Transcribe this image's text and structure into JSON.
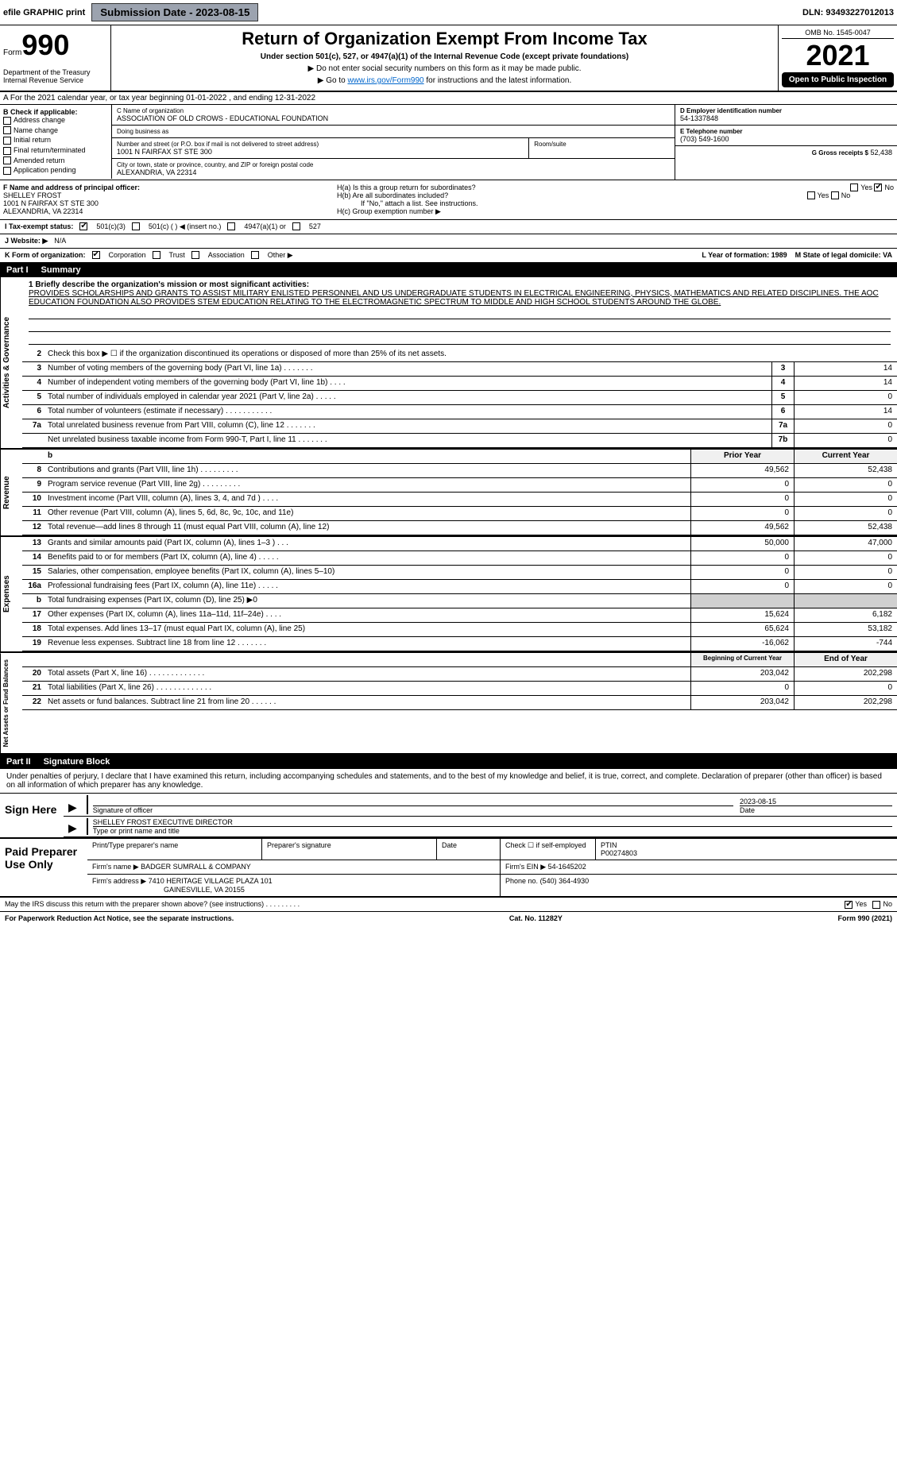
{
  "topbar": {
    "efile": "efile GRAPHIC print",
    "subdate_label": "Submission Date - 2023-08-15",
    "dln": "DLN: 93493227012013"
  },
  "header": {
    "form_word": "Form",
    "form_num": "990",
    "title": "Return of Organization Exempt From Income Tax",
    "sub1": "Under section 501(c), 527, or 4947(a)(1) of the Internal Revenue Code (except private foundations)",
    "sub2": "▶ Do not enter social security numbers on this form as it may be made public.",
    "sub3_pre": "▶ Go to ",
    "sub3_link": "www.irs.gov/Form990",
    "sub3_post": " for instructions and the latest information.",
    "dept": "Department of the Treasury\nInternal Revenue Service",
    "omb": "OMB No. 1545-0047",
    "year": "2021",
    "inspect": "Open to Public Inspection"
  },
  "rowA": "A For the 2021 calendar year, or tax year beginning 01-01-2022    , and ending 12-31-2022",
  "blockB": {
    "label": "B Check if applicable:",
    "items": [
      "Address change",
      "Name change",
      "Initial return",
      "Final return/terminated",
      "Amended return",
      "Application pending"
    ]
  },
  "blockC": {
    "name_lbl": "C Name of organization",
    "name": "ASSOCIATION OF OLD CROWS - EDUCATIONAL FOUNDATION",
    "dba_lbl": "Doing business as",
    "dba": "",
    "addr_lbl": "Number and street (or P.O. box if mail is not delivered to street address)",
    "room_lbl": "Room/suite",
    "addr": "1001 N FAIRFAX ST STE 300",
    "city_lbl": "City or town, state or province, country, and ZIP or foreign postal code",
    "city": "ALEXANDRIA, VA  22314"
  },
  "blockD": {
    "lbl": "D Employer identification number",
    "val": "54-1337848"
  },
  "blockE": {
    "lbl": "E Telephone number",
    "val": "(703) 549-1600"
  },
  "blockG": {
    "lbl": "G Gross receipts $",
    "val": "52,438"
  },
  "blockF": {
    "lbl": "F  Name and address of principal officer:",
    "name": "SHELLEY FROST",
    "addr1": "1001 N FAIRFAX ST STE 300",
    "addr2": "ALEXANDRIA, VA  22314"
  },
  "blockH": {
    "ha": "H(a)  Is this a group return for subordinates?",
    "hb": "H(b)  Are all subordinates included?",
    "hb_note": "If \"No,\" attach a list. See instructions.",
    "hc": "H(c)  Group exemption number ▶",
    "yes": "Yes",
    "no": "No"
  },
  "rowI": {
    "lbl": "I    Tax-exempt status:",
    "opts": [
      "501(c)(3)",
      "501(c) (  ) ◀ (insert no.)",
      "4947(a)(1) or",
      "527"
    ]
  },
  "rowJ": {
    "lbl": "J   Website: ▶",
    "val": "N/A"
  },
  "rowK": {
    "lbl": "K Form of organization:",
    "opts": [
      "Corporation",
      "Trust",
      "Association",
      "Other ▶"
    ]
  },
  "rowL": {
    "l": "L Year of formation: 1989",
    "m": "M State of legal domicile: VA"
  },
  "part1": {
    "num": "Part I",
    "title": "Summary"
  },
  "mission": {
    "q": "1  Briefly describe the organization's mission or most significant activities:",
    "text": "PROVIDES SCHOLARSHIPS AND GRANTS TO ASSIST MILITARY ENLISTED PERSONNEL AND US UNDERGRADUATE STUDENTS IN ELECTRICAL ENGINEERING, PHYSICS, MATHEMATICS AND RELATED DISCIPLINES. THE AOC EDUCATION FOUNDATION ALSO PROVIDES STEM EDUCATION RELATING TO THE ELECTROMAGNETIC SPECTRUM TO MIDDLE AND HIGH SCHOOL STUDENTS AROUND THE GLOBE."
  },
  "line2": "Check this box ▶ ☐  if the organization discontinued its operations or disposed of more than 25% of its net assets.",
  "sideLabels": {
    "ag": "Activities & Governance",
    "rev": "Revenue",
    "exp": "Expenses",
    "net": "Net Assets or Fund Balances"
  },
  "govRows": [
    {
      "n": "3",
      "t": "Number of voting members of the governing body (Part VI, line 1a)   .    .    .    .    .    .    .",
      "b": "3",
      "v": "14"
    },
    {
      "n": "4",
      "t": "Number of independent voting members of the governing body (Part VI, line 1b)    .    .    .    .",
      "b": "4",
      "v": "14"
    },
    {
      "n": "5",
      "t": "Total number of individuals employed in calendar year 2021 (Part V, line 2a)   .    .    .    .    .",
      "b": "5",
      "v": "0"
    },
    {
      "n": "6",
      "t": "Total number of volunteers (estimate if necessary)    .    .    .    .    .    .    .    .    .    .    .",
      "b": "6",
      "v": "14"
    },
    {
      "n": "7a",
      "t": "Total unrelated business revenue from Part VIII, column (C), line 12   .    .    .    .    .    .    .",
      "b": "7a",
      "v": "0"
    },
    {
      "n": "",
      "t": "Net unrelated business taxable income from Form 990-T, Part I, line 11   .    .    .    .    .    .    .",
      "b": "7b",
      "v": "0"
    }
  ],
  "colHead": {
    "prior": "Prior Year",
    "curr": "Current Year"
  },
  "revRows": [
    {
      "n": "8",
      "t": "Contributions and grants (Part VIII, line 1h)    .    .    .    .    .    .    .    .    .",
      "p": "49,562",
      "c": "52,438"
    },
    {
      "n": "9",
      "t": "Program service revenue (Part VIII, line 2g)   .    .    .    .    .    .    .    .    .",
      "p": "0",
      "c": "0"
    },
    {
      "n": "10",
      "t": "Investment income (Part VIII, column (A), lines 3, 4, and 7d )    .    .    .    .",
      "p": "0",
      "c": "0"
    },
    {
      "n": "11",
      "t": "Other revenue (Part VIII, column (A), lines 5, 6d, 8c, 9c, 10c, and 11e)",
      "p": "0",
      "c": "0"
    },
    {
      "n": "12",
      "t": "Total revenue—add lines 8 through 11 (must equal Part VIII, column (A), line 12)",
      "p": "49,562",
      "c": "52,438"
    }
  ],
  "expRows": [
    {
      "n": "13",
      "t": "Grants and similar amounts paid (Part IX, column (A), lines 1–3 )   .    .    .",
      "p": "50,000",
      "c": "47,000"
    },
    {
      "n": "14",
      "t": "Benefits paid to or for members (Part IX, column (A), line 4)   .    .    .    .    .",
      "p": "0",
      "c": "0"
    },
    {
      "n": "15",
      "t": "Salaries, other compensation, employee benefits (Part IX, column (A), lines 5–10)",
      "p": "0",
      "c": "0"
    },
    {
      "n": "16a",
      "t": "Professional fundraising fees (Part IX, column (A), line 11e)   .    .    .    .    .",
      "p": "0",
      "c": "0"
    },
    {
      "n": "b",
      "t": "Total fundraising expenses (Part IX, column (D), line 25) ▶0",
      "p": "",
      "c": "",
      "shade": true
    },
    {
      "n": "17",
      "t": "Other expenses (Part IX, column (A), lines 11a–11d, 11f–24e)   .    .    .    .",
      "p": "15,624",
      "c": "6,182"
    },
    {
      "n": "18",
      "t": "Total expenses. Add lines 13–17 (must equal Part IX, column (A), line 25)",
      "p": "65,624",
      "c": "53,182"
    },
    {
      "n": "19",
      "t": "Revenue less expenses. Subtract line 18 from line 12   .    .    .    .    .    .    .",
      "p": "-16,062",
      "c": "-744"
    }
  ],
  "netHead": {
    "beg": "Beginning of Current Year",
    "end": "End of Year"
  },
  "netRows": [
    {
      "n": "20",
      "t": "Total assets (Part X, line 16)   .    .    .    .    .    .    .    .    .    .    .    .    .",
      "p": "203,042",
      "c": "202,298"
    },
    {
      "n": "21",
      "t": "Total liabilities (Part X, line 26)   .    .    .    .    .    .    .    .    .    .    .    .    .",
      "p": "0",
      "c": "0"
    },
    {
      "n": "22",
      "t": "Net assets or fund balances. Subtract line 21 from line 20   .    .    .    .    .    .",
      "p": "203,042",
      "c": "202,298"
    }
  ],
  "part2": {
    "num": "Part II",
    "title": "Signature Block"
  },
  "sigIntro": "Under penalties of perjury, I declare that I have examined this return, including accompanying schedules and statements, and to the best of my knowledge and belief, it is true, correct, and complete. Declaration of preparer (other than officer) is based on all information of which preparer has any knowledge.",
  "sig": {
    "here": "Sign Here",
    "sig_lbl": "Signature of officer",
    "date_lbl": "Date",
    "date": "2023-08-15",
    "name": "SHELLEY FROST  EXECUTIVE DIRECTOR",
    "name_lbl": "Type or print name and title"
  },
  "prep": {
    "title": "Paid Preparer Use Only",
    "h1": "Print/Type preparer's name",
    "h2": "Preparer's signature",
    "h3": "Date",
    "h4_chk": "Check ☐ if self-employed",
    "h5": "PTIN",
    "ptin": "P00274803",
    "firm_lbl": "Firm's name    ▶",
    "firm": "BADGER SUMRALL & COMPANY",
    "ein_lbl": "Firm's EIN ▶",
    "ein": "54-1645202",
    "addr_lbl": "Firm's address ▶",
    "addr1": "7410 HERITAGE VILLAGE PLAZA 101",
    "addr2": "GAINESVILLE, VA  20155",
    "phone_lbl": "Phone no.",
    "phone": "(540) 364-4930"
  },
  "discuss": {
    "q": "May the IRS discuss this return with the preparer shown above? (see instructions)   .    .    .    .    .    .    .    .    .",
    "yes": "Yes",
    "no": "No"
  },
  "footer": {
    "pra": "For Paperwork Reduction Act Notice, see the separate instructions.",
    "cat": "Cat. No. 11282Y",
    "form": "Form 990 (2021)"
  }
}
